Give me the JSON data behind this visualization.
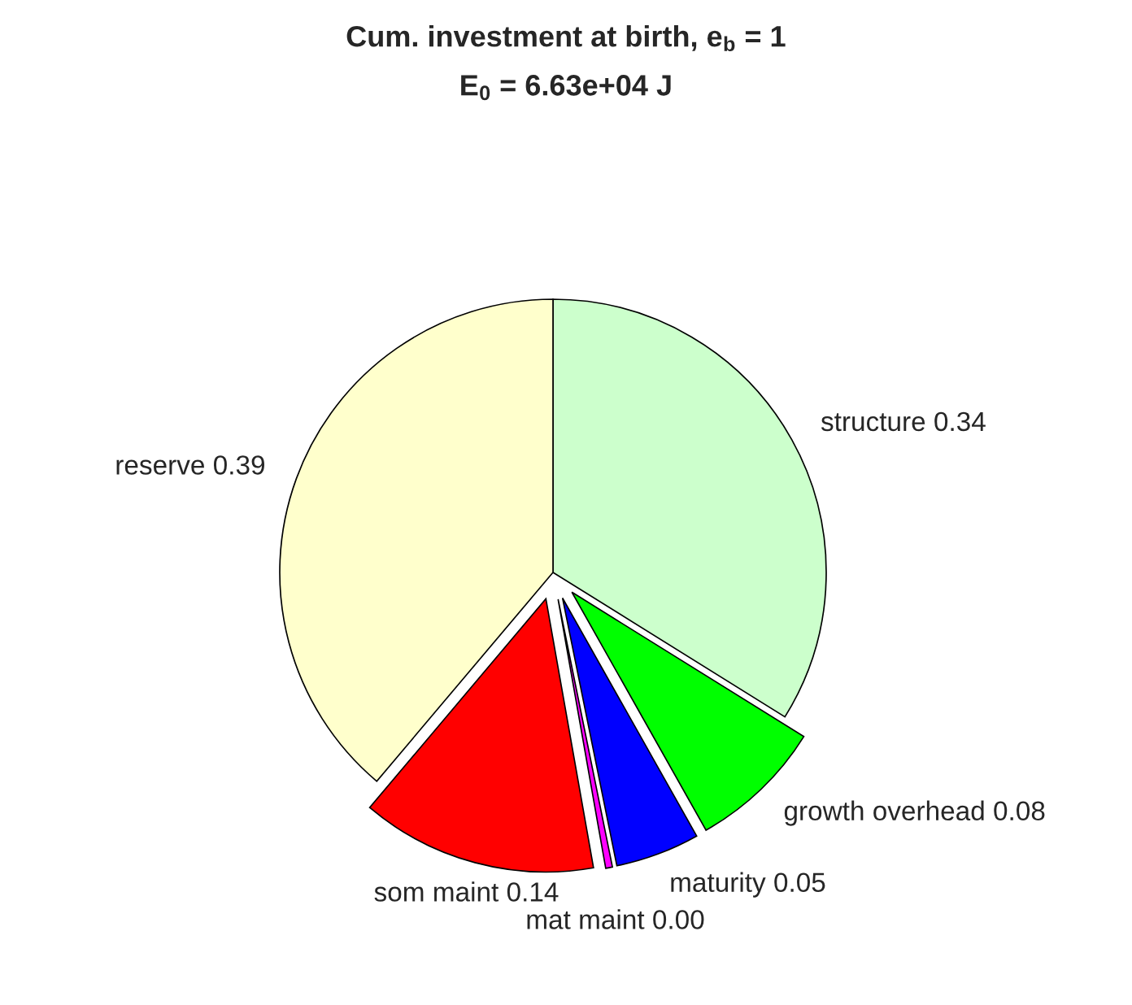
{
  "chart_data": {
    "type": "pie",
    "title": "Cum. investment at birth, e$_{b}$ = 1",
    "subtitle": "E$_{0}$ = 6.63e+04 J",
    "categories": [
      "structure",
      "growth overhead",
      "maturity",
      "mat maint",
      "som maint",
      "reserve"
    ],
    "values": [
      0.34,
      0.08,
      0.05,
      0.004,
      0.14,
      0.39
    ],
    "value_labels": [
      "0.34",
      "0.08",
      "0.05",
      "0.00",
      "0.14",
      "0.39"
    ],
    "colors": [
      "#ccffcc",
      "#00ff00",
      "#0000ff",
      "#ff00ff",
      "#ff0000",
      "#ffffcc"
    ]
  }
}
